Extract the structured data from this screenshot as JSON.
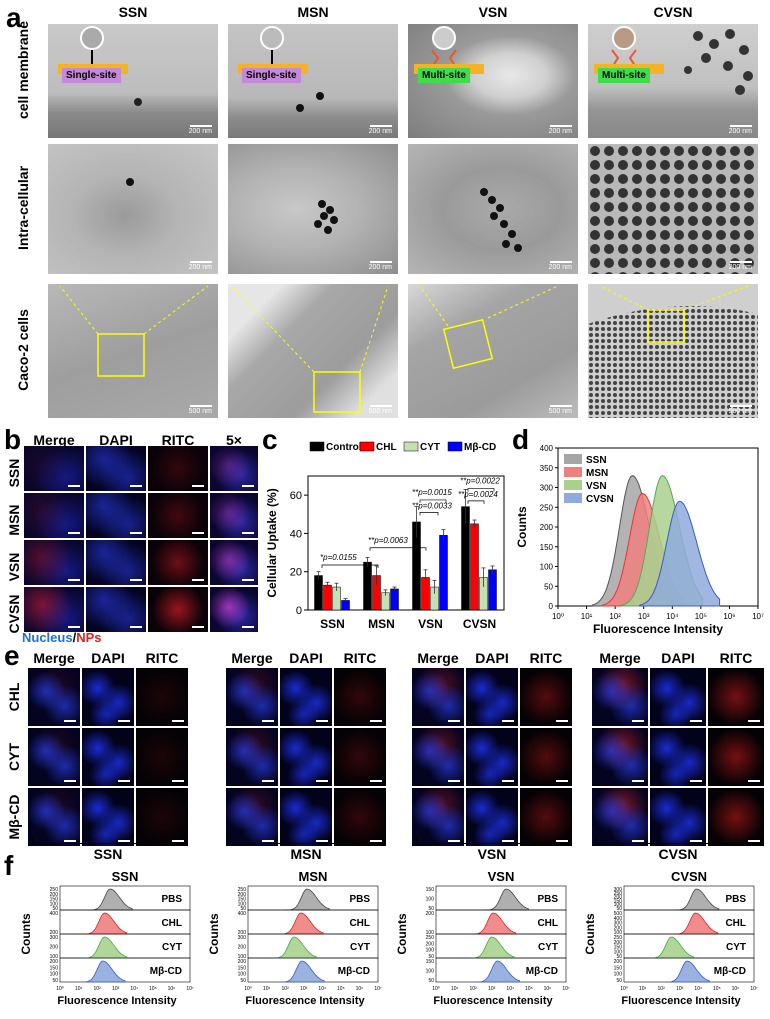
{
  "panels": {
    "a": "a",
    "b": "b",
    "c": "c",
    "d": "d",
    "e": "e",
    "f": "f"
  },
  "panel_a": {
    "columns": [
      "SSN",
      "MSN",
      "VSN",
      "CVSN"
    ],
    "rows": [
      "cell membrane",
      "Intra-cellular",
      "Caco-2 cells"
    ],
    "badges": [
      "Single-site",
      "Single-site",
      "Multi-site",
      "Multi-site"
    ],
    "scale_top": [
      "200 nm",
      "200 nm",
      "200 nm",
      "200 nm"
    ],
    "scale_mid": [
      "200 nm",
      "200 nm",
      "200 nm",
      "200 nm"
    ],
    "scale_bot": [
      "500 nm",
      "500 nm",
      "500 nm",
      "500 nm"
    ]
  },
  "panel_b": {
    "columns": [
      "Merge",
      "DAPI",
      "RITC",
      "5×"
    ],
    "rows": [
      "SSN",
      "MSN",
      "VSN",
      "CVSN"
    ],
    "caption_nucleus": "Nucleus",
    "caption_sep": "/",
    "caption_nps": "NPs"
  },
  "panel_e": {
    "columns": [
      "Merge",
      "DAPI",
      "RITC"
    ],
    "rows": [
      "CHL",
      "CYT",
      "Mβ-CD"
    ],
    "groups": [
      "SSN",
      "MSN",
      "VSN",
      "CVSN"
    ]
  },
  "colors": {
    "control": "#000000",
    "chl": "#ff0000",
    "cyt": "#c6e0b4",
    "mbcd": "#0000ff",
    "ssn": "#a6a6a6",
    "msn": "#f08080",
    "vsn": "#a9d18e",
    "cvsn": "#8faadc"
  },
  "chart_data": [
    {
      "type": "bar",
      "id": "c",
      "ylabel": "Cellular Uptake (%)",
      "ylim": [
        0,
        70
      ],
      "yticks": [
        0,
        20,
        40,
        60
      ],
      "categories": [
        "SSN",
        "MSN",
        "VSN",
        "CVSN"
      ],
      "legend_position": "top",
      "series": [
        {
          "name": "Control",
          "values": [
            18,
            25,
            46,
            54
          ],
          "errors": [
            2,
            2.5,
            8,
            9
          ]
        },
        {
          "name": "CHL",
          "values": [
            13,
            18,
            17,
            45
          ],
          "errors": [
            1.5,
            5,
            4,
            2
          ]
        },
        {
          "name": "CYT",
          "values": [
            12,
            9,
            12,
            17
          ],
          "errors": [
            2,
            1.5,
            3.5,
            5
          ]
        },
        {
          "name": "Mβ-CD",
          "values": [
            5,
            11,
            39,
            21
          ],
          "errors": [
            1,
            1,
            3,
            2
          ]
        }
      ],
      "annotations": [
        "*p=0.0155",
        "**p=0.0063",
        "**p=0.0015",
        "**p=0.0033",
        "**p=0.0022",
        "**p=0.0024"
      ]
    },
    {
      "type": "area",
      "id": "d",
      "xlabel": "Fluorescence Intensity",
      "ylabel": "Counts",
      "xscale": "log",
      "xlim": [
        1,
        10000000
      ],
      "ylim": [
        0,
        400
      ],
      "yticks": [
        0,
        50,
        100,
        150,
        200,
        250,
        300,
        350,
        400
      ],
      "xtick_labels": [
        "10⁰",
        "10¹",
        "10²",
        "10³",
        "10⁴",
        "10⁵",
        "10⁶",
        "10⁷"
      ],
      "legend_position": "top-left",
      "series": [
        {
          "name": "SSN",
          "peak_x": 400,
          "peak": 330
        },
        {
          "name": "MSN",
          "peak_x": 900,
          "peak": 285
        },
        {
          "name": "VSN",
          "peak_x": 4500,
          "peak": 330
        },
        {
          "name": "CVSN",
          "peak_x": 18000,
          "peak": 265
        }
      ]
    },
    {
      "type": "area",
      "id": "f",
      "xlabel": "Fluorescence Intensity",
      "ylabel": "Counts",
      "xscale": "log",
      "legend": [
        "PBS",
        "CHL",
        "CYT",
        "Mβ-CD"
      ],
      "xtick_labels": [
        "10⁰",
        "10¹",
        "10²",
        "10³",
        "10⁴",
        "10⁵",
        "10⁶",
        "10⁷"
      ],
      "groups": [
        {
          "name": "SSN",
          "yticks": [
            [
              "250",
              "200",
              "150",
              "100",
              "50"
            ],
            [
              "400",
              "200"
            ],
            [
              "300",
              "200",
              "100"
            ],
            [
              "200",
              "150",
              "100",
              "50"
            ]
          ],
          "peaks_x": [
            500,
            250,
            250,
            200
          ]
        },
        {
          "name": "MSN",
          "yticks": [
            [
              "250",
              "200",
              "150",
              "100",
              "50"
            ],
            [
              "400",
              "200"
            ],
            [
              "300",
              "200",
              "100"
            ],
            [
              "200",
              "150",
              "100",
              "50"
            ]
          ],
          "peaks_x": [
            1500,
            700,
            300,
            800
          ]
        },
        {
          "name": "VSN",
          "yticks": [
            [
              "150",
              "100",
              "50"
            ],
            [
              "200",
              "100"
            ],
            [
              "250",
              "200",
              "100",
              "50"
            ],
            [
              "150",
              "100",
              "50"
            ]
          ],
          "peaks_x": [
            6000,
            1200,
            1000,
            2000
          ]
        },
        {
          "name": "CVSN",
          "yticks": [
            [
              "300",
              "250",
              "200",
              "150",
              "100",
              "50"
            ],
            [
              "500",
              "400",
              "300",
              "200",
              "100"
            ],
            [
              "250",
              "200",
              "150",
              "100",
              "50"
            ],
            [
              "200",
              "150",
              "100",
              "50"
            ]
          ],
          "peaks_x": [
            8000,
            7000,
            350,
            2500
          ]
        }
      ]
    }
  ]
}
